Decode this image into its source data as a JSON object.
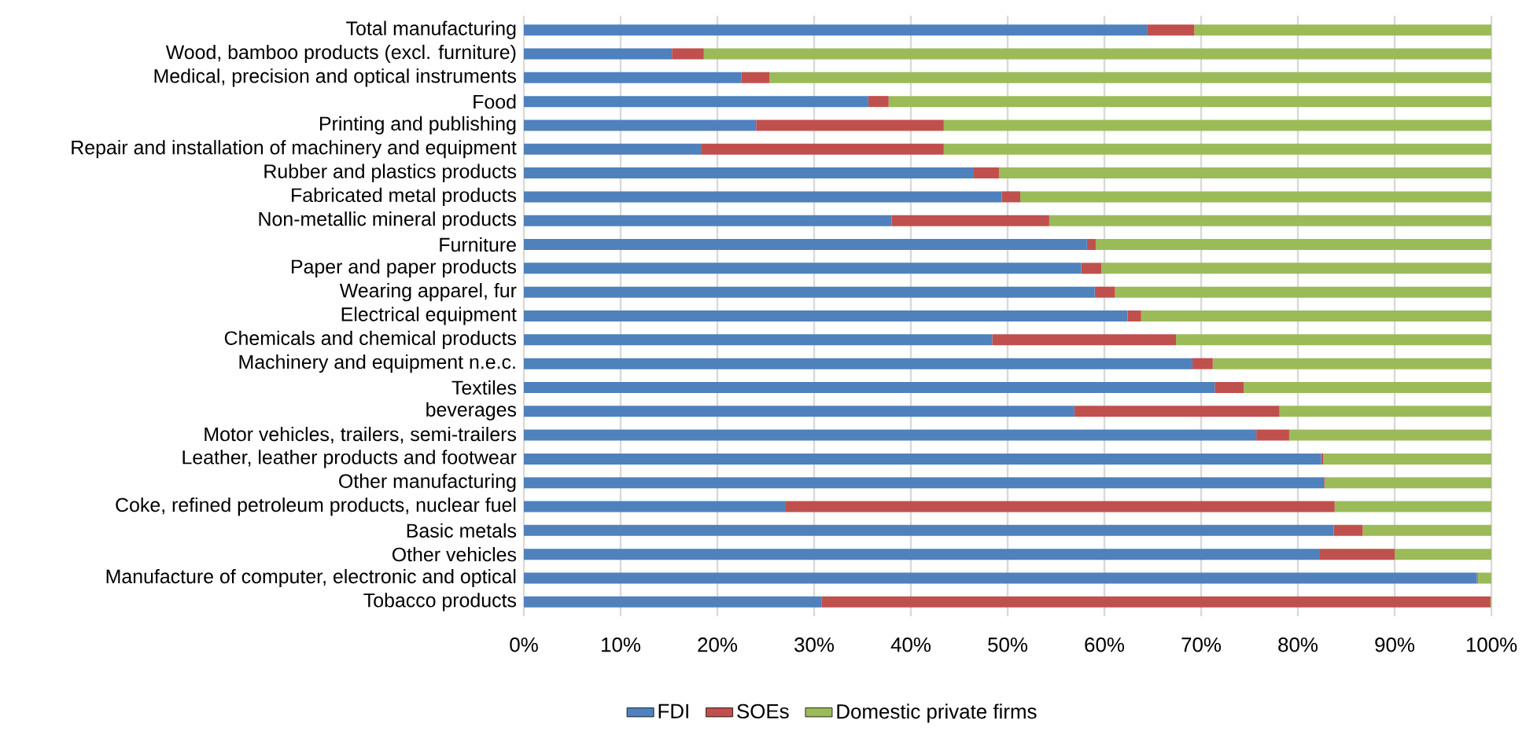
{
  "chart_data": {
    "type": "bar",
    "orientation": "horizontal",
    "stacked": true,
    "categories": [
      "Total manufacturing",
      "Wood, bamboo products (excl. furniture)",
      "Medical, precision and optical instruments",
      "Food",
      "Printing and publishing",
      "Repair and installation of machinery and equipment",
      "Rubber and plastics products",
      "Fabricated metal products",
      "Non-metallic mineral products",
      "Furniture",
      "Paper and paper products",
      "Wearing apparel, fur",
      "Electrical equipment",
      "Chemicals and chemical products",
      "Machinery and equipment n.e.c.",
      "Textiles",
      "beverages",
      "Motor vehicles, trailers, semi-trailers",
      "Leather, leather products and footwear",
      "Other manufacturing",
      "Coke, refined petroleum products, nuclear fuel",
      "Basic metals",
      "Other vehicles",
      "Manufacture of computer, electronic and optical",
      "Tobacco products"
    ],
    "series": [
      {
        "name": "FDI",
        "color": "#4f81bd",
        "values": [
          64.4,
          15.3,
          22.5,
          35.6,
          24.0,
          18.3,
          46.5,
          49.4,
          38.0,
          58.2,
          57.6,
          59.0,
          62.4,
          48.4,
          69.1,
          71.4,
          56.9,
          75.7,
          82.4,
          82.7,
          27.0,
          83.7,
          82.2,
          98.5,
          30.8
        ]
      },
      {
        "name": "SOEs",
        "color": "#c0504d",
        "values": [
          4.9,
          3.3,
          2.9,
          2.1,
          19.4,
          25.1,
          2.6,
          1.9,
          16.3,
          0.9,
          2.1,
          2.1,
          1.4,
          19.0,
          2.1,
          3.0,
          21.2,
          3.4,
          0.2,
          0.1,
          56.8,
          3.0,
          7.8,
          0.1,
          69.1
        ]
      },
      {
        "name": "Domestic private firms",
        "color": "#9bbb59",
        "values": [
          30.7,
          81.4,
          74.6,
          62.3,
          56.6,
          56.6,
          50.9,
          48.7,
          45.7,
          40.9,
          40.3,
          38.9,
          36.2,
          32.6,
          28.8,
          25.6,
          21.9,
          20.9,
          17.4,
          17.2,
          16.2,
          13.3,
          10.0,
          1.4,
          0.1
        ]
      }
    ],
    "xlim": [
      0,
      100
    ],
    "xticks": [
      {
        "value": 0,
        "label": "0%"
      },
      {
        "value": 10,
        "label": "10%"
      },
      {
        "value": 20,
        "label": "20%"
      },
      {
        "value": 30,
        "label": "30%"
      },
      {
        "value": 40,
        "label": "40%"
      },
      {
        "value": 50,
        "label": "50%"
      },
      {
        "value": 60,
        "label": "60%"
      },
      {
        "value": 70,
        "label": "70%"
      },
      {
        "value": 80,
        "label": "80%"
      },
      {
        "value": 90,
        "label": "90%"
      },
      {
        "value": 100,
        "label": "100%"
      }
    ],
    "grid": "x",
    "legend": "bottom"
  }
}
